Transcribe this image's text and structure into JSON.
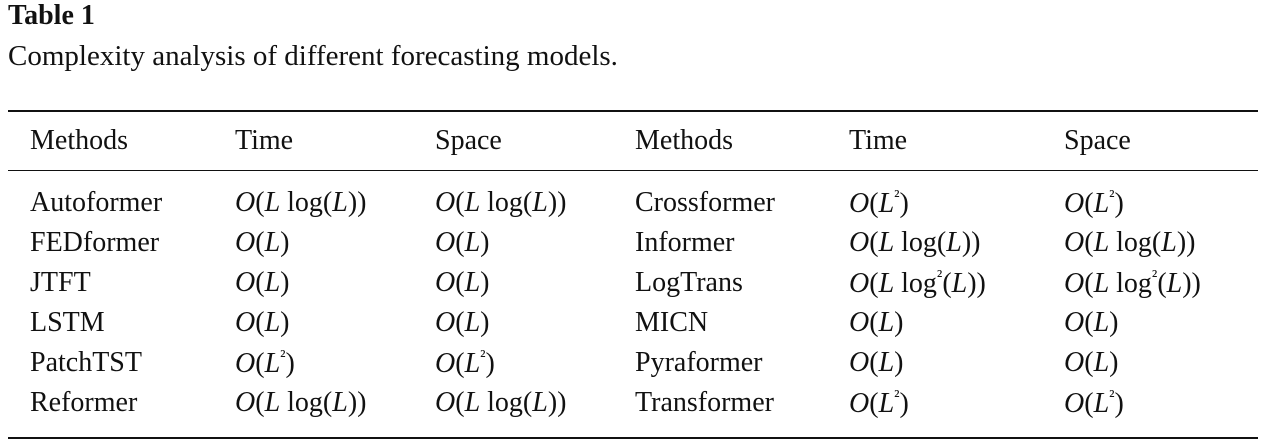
{
  "header": {
    "label": "Table 1",
    "caption": "Complexity analysis of different forecasting models."
  },
  "table": {
    "columns": [
      "Methods",
      "Time",
      "Space",
      "Methods",
      "Time",
      "Space"
    ],
    "rows": [
      [
        "Autoformer",
        "O(L log(L))",
        "O(L log(L))",
        "Crossformer",
        "O(L²)",
        "O(L²)"
      ],
      [
        "FEDformer",
        "O(L)",
        "O(L)",
        "Informer",
        "O(L log(L))",
        "O(L log(L))"
      ],
      [
        "JTFT",
        "O(L)",
        "O(L)",
        "LogTrans",
        "O(L log²(L))",
        "O(L log²(L))"
      ],
      [
        "LSTM",
        "O(L)",
        "O(L)",
        "MICN",
        "O(L)",
        "O(L)"
      ],
      [
        "PatchTST",
        "O(L²)",
        "O(L²)",
        "Pyraformer",
        "O(L)",
        "O(L)"
      ],
      [
        "Reformer",
        "O(L log(L))",
        "O(L log(L))",
        "Transformer",
        "O(L²)",
        "O(L²)"
      ]
    ]
  }
}
